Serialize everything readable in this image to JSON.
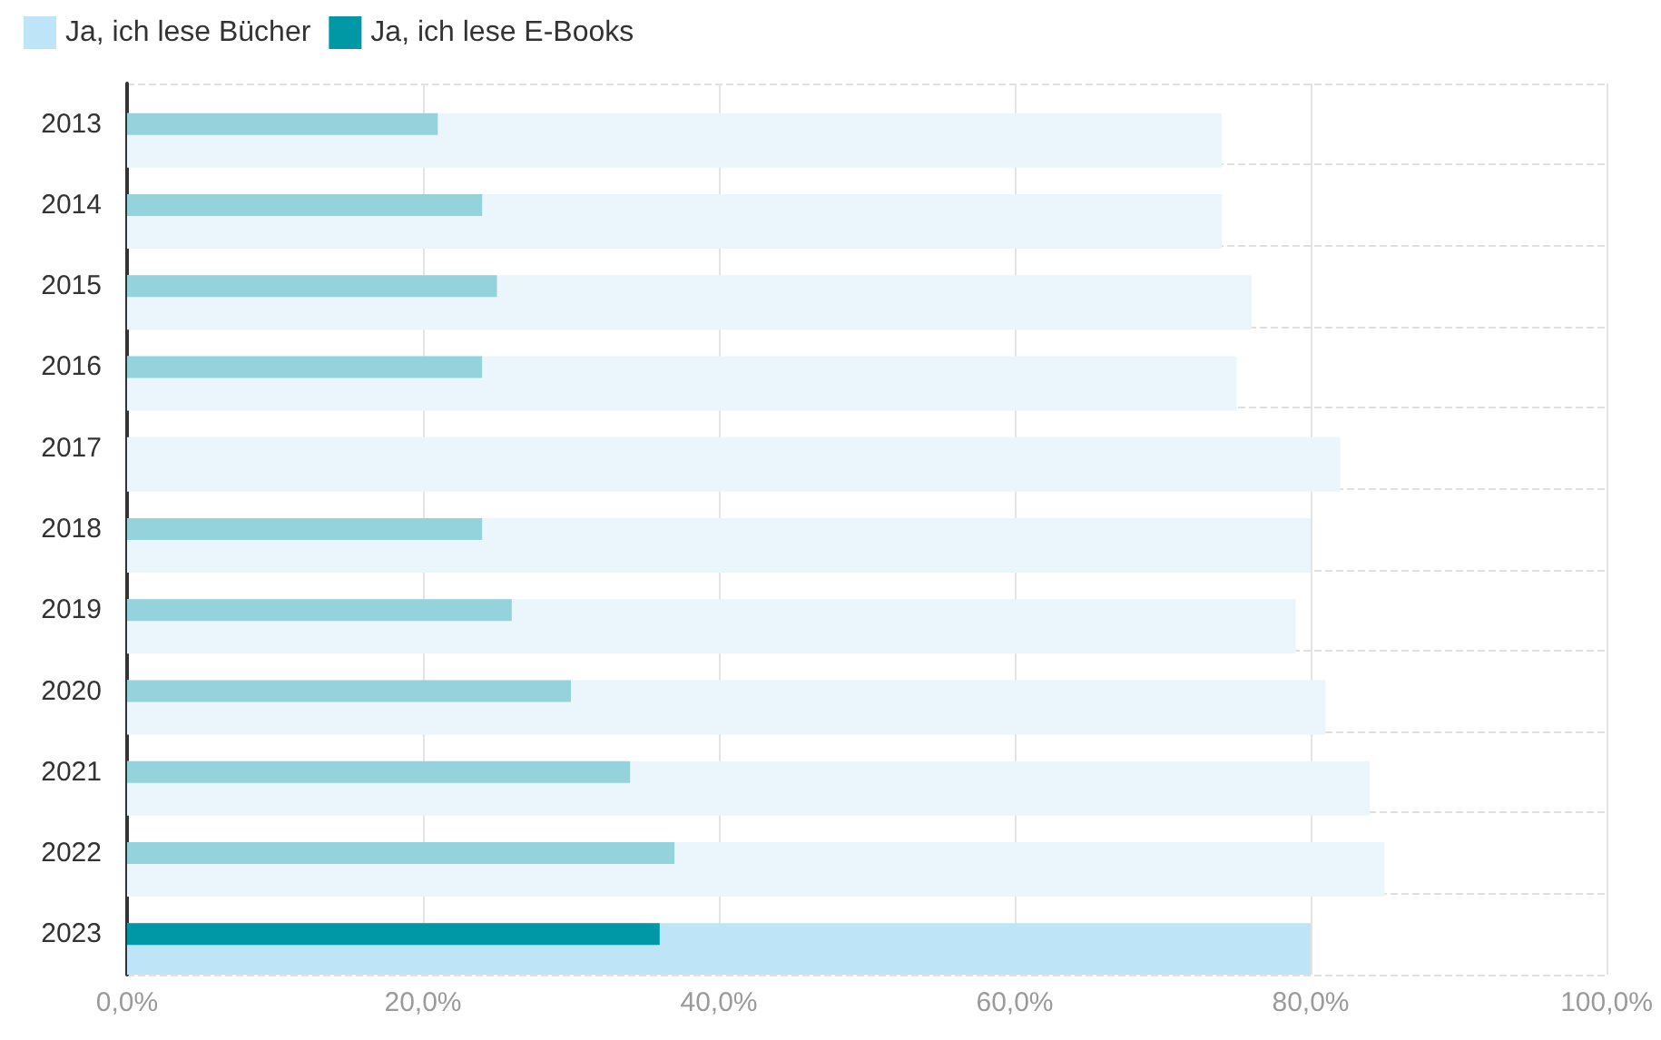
{
  "chart_data": {
    "type": "bar",
    "orientation": "horizontal",
    "categories": [
      "2013",
      "2014",
      "2015",
      "2016",
      "2017",
      "2018",
      "2019",
      "2020",
      "2021",
      "2022",
      "2023"
    ],
    "series": [
      {
        "name": "Ja, ich lese Bücher",
        "color": "#bde4f7",
        "colors": [
          "#eaf6fc",
          "#eaf6fc",
          "#eaf6fc",
          "#eaf6fc",
          "#eaf6fc",
          "#eaf6fc",
          "#eaf6fc",
          "#eaf6fc",
          "#eaf6fc",
          "#eaf6fc",
          "#bde4f7"
        ],
        "values": [
          74,
          74,
          76,
          75,
          82,
          80,
          79,
          81,
          84,
          85,
          80
        ]
      },
      {
        "name": "Ja, ich lese E-Books",
        "color": "#0097a7",
        "colors": [
          "#94d3dc",
          "#94d3dc",
          "#94d3dc",
          "#94d3dc",
          "#94d3dc",
          "#94d3dc",
          "#94d3dc",
          "#94d3dc",
          "#94d3dc",
          "#94d3dc",
          "#0097a7"
        ],
        "values": [
          21,
          24,
          25,
          24,
          null,
          24,
          26,
          30,
          34,
          37,
          36
        ]
      }
    ],
    "xlim": [
      0,
      100
    ],
    "xticks": [
      {
        "value": 0,
        "label": "0,0%"
      },
      {
        "value": 20,
        "label": "20,0%"
      },
      {
        "value": 40,
        "label": "40,0%"
      },
      {
        "value": 60,
        "label": "60,0%"
      },
      {
        "value": 80,
        "label": "80,0%"
      },
      {
        "value": 100,
        "label": "100,0%"
      }
    ],
    "grid": true,
    "legend": "top left"
  }
}
